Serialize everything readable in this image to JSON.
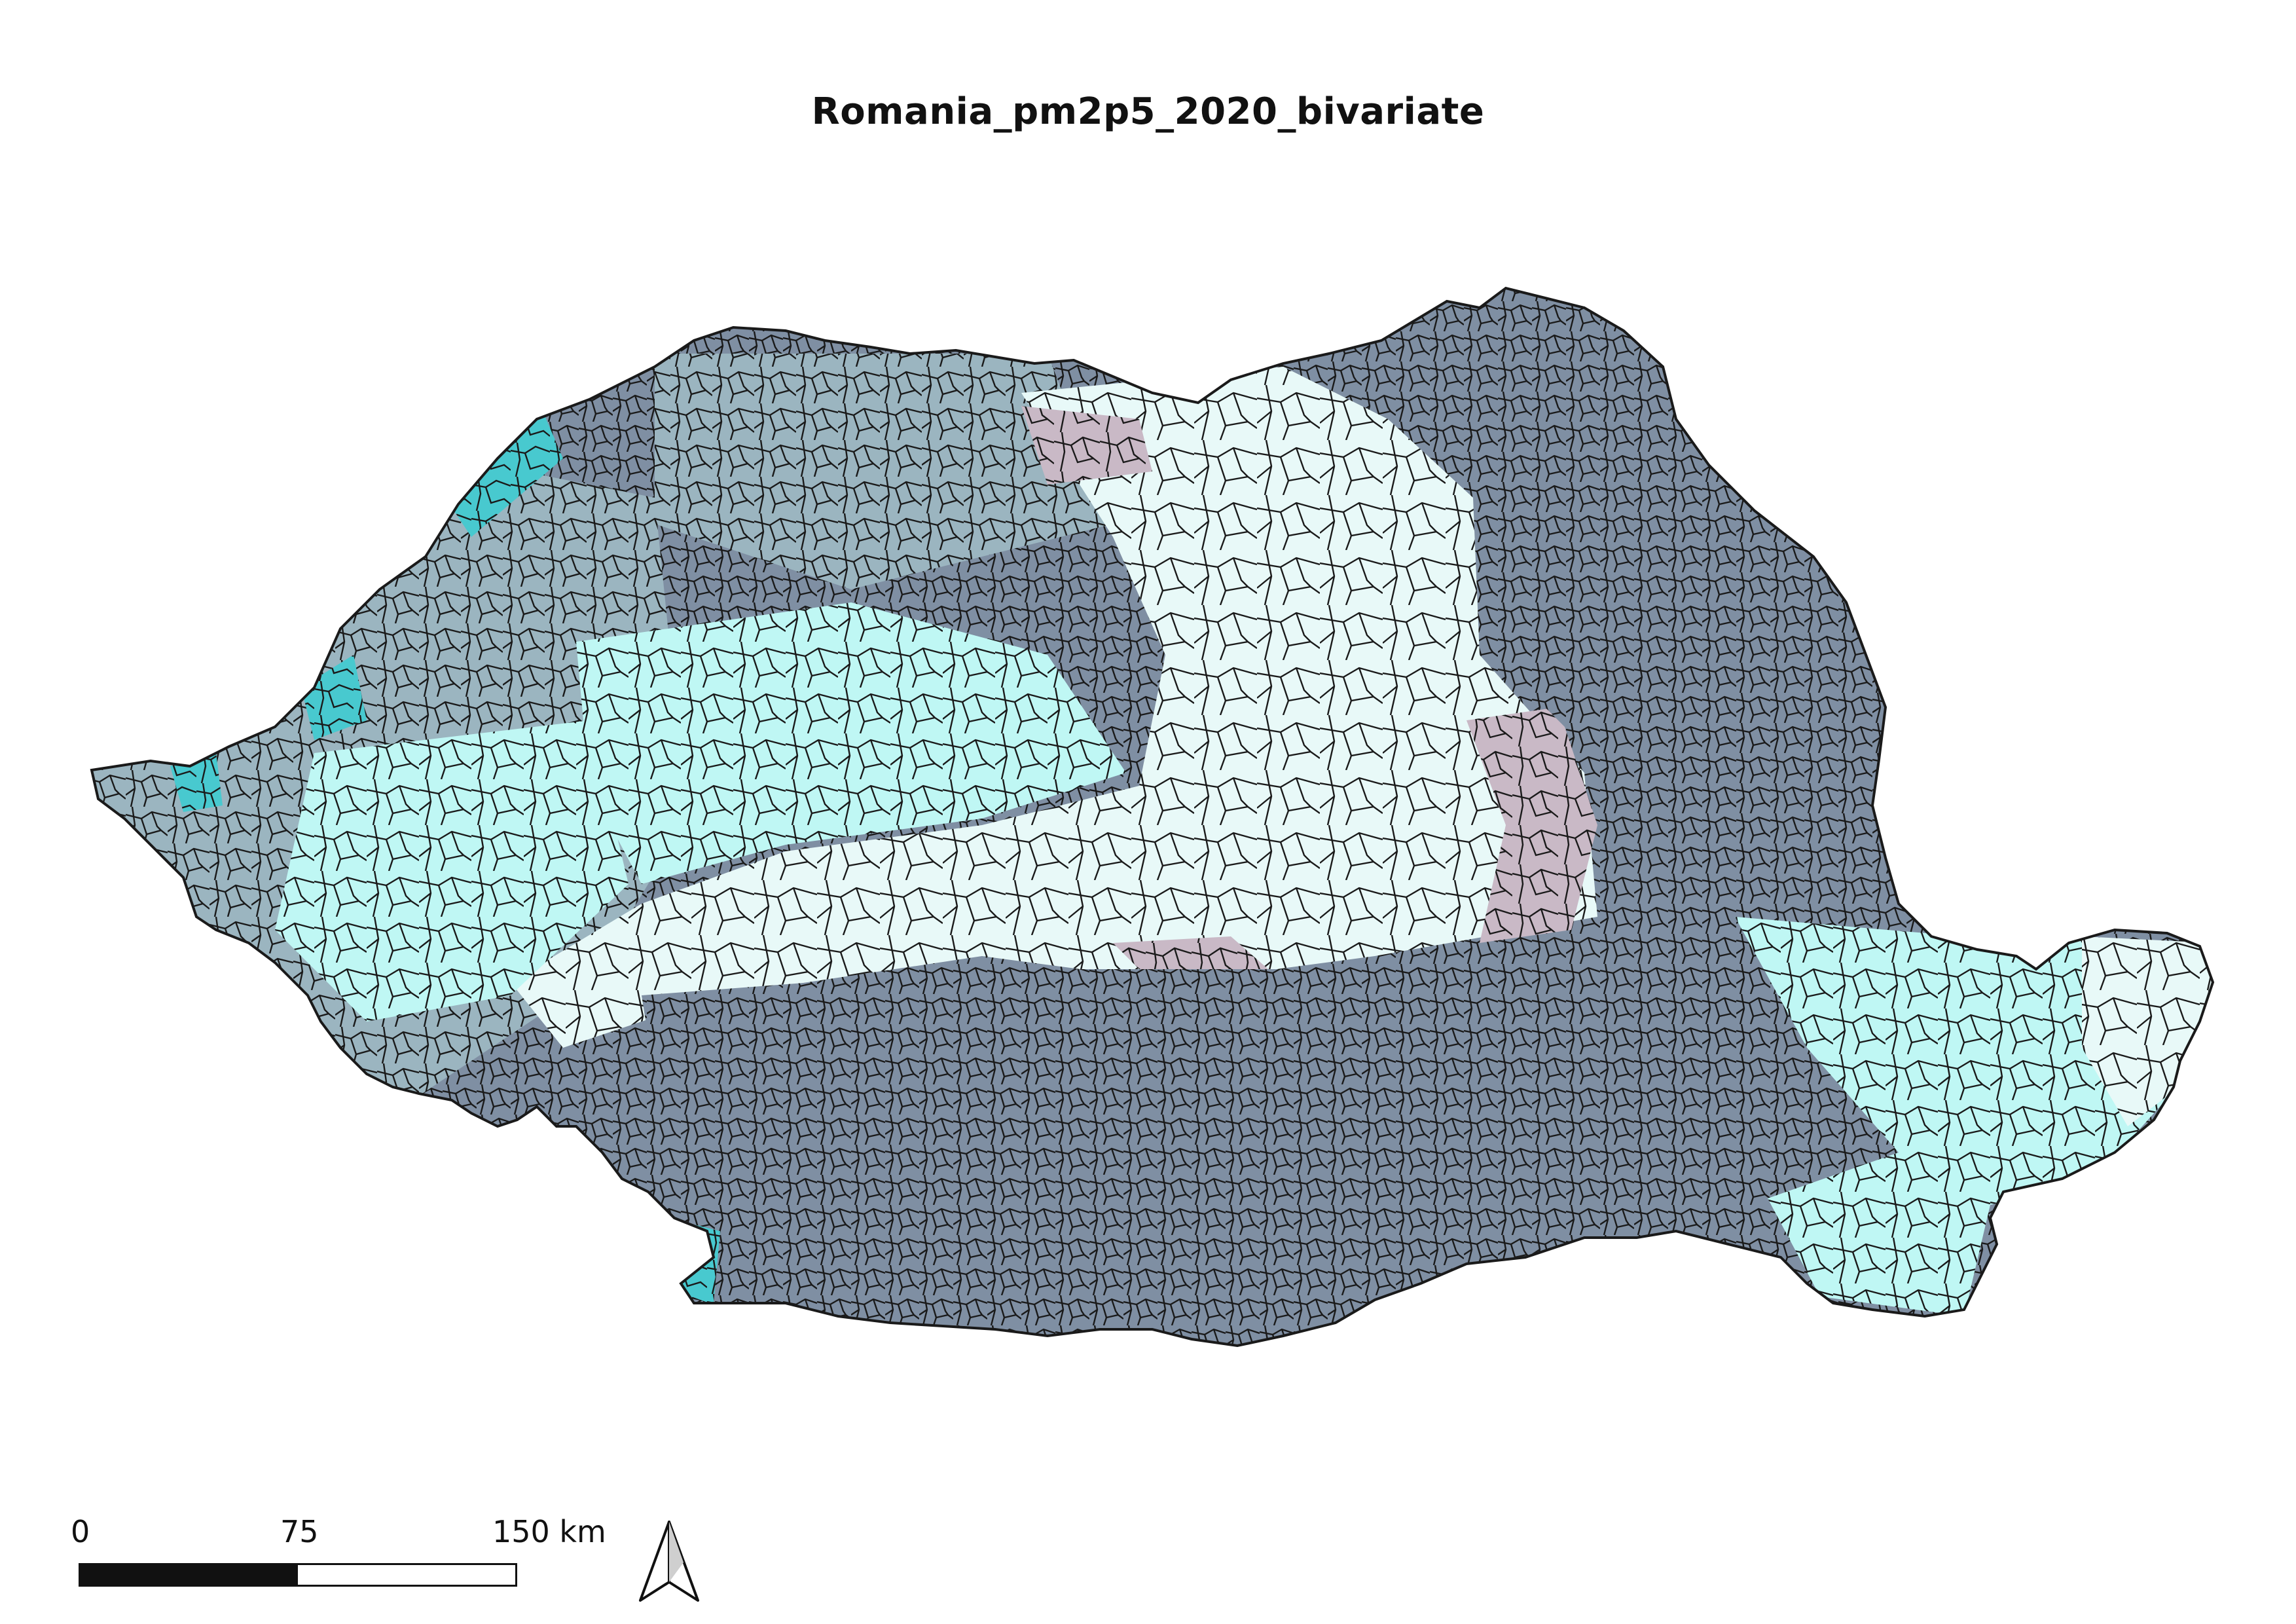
{
  "map": {
    "title": "Romania_pm2p5_2020_bivariate",
    "region": "Romania",
    "bivariate_palette": [
      "#e8f6f7",
      "#bff7f4",
      "#7fe8e6",
      "#48c9cf",
      "#8fc6cc",
      "#9bb5c0",
      "#7f8fa3",
      "#6f7d92",
      "#c9b9c6",
      "#b99aae"
    ],
    "border_color": "#1a1a1a"
  },
  "scale_bar": {
    "labels": [
      "0",
      "75",
      "150 km"
    ]
  },
  "north_arrow": {
    "icon": "north-arrow-icon"
  }
}
